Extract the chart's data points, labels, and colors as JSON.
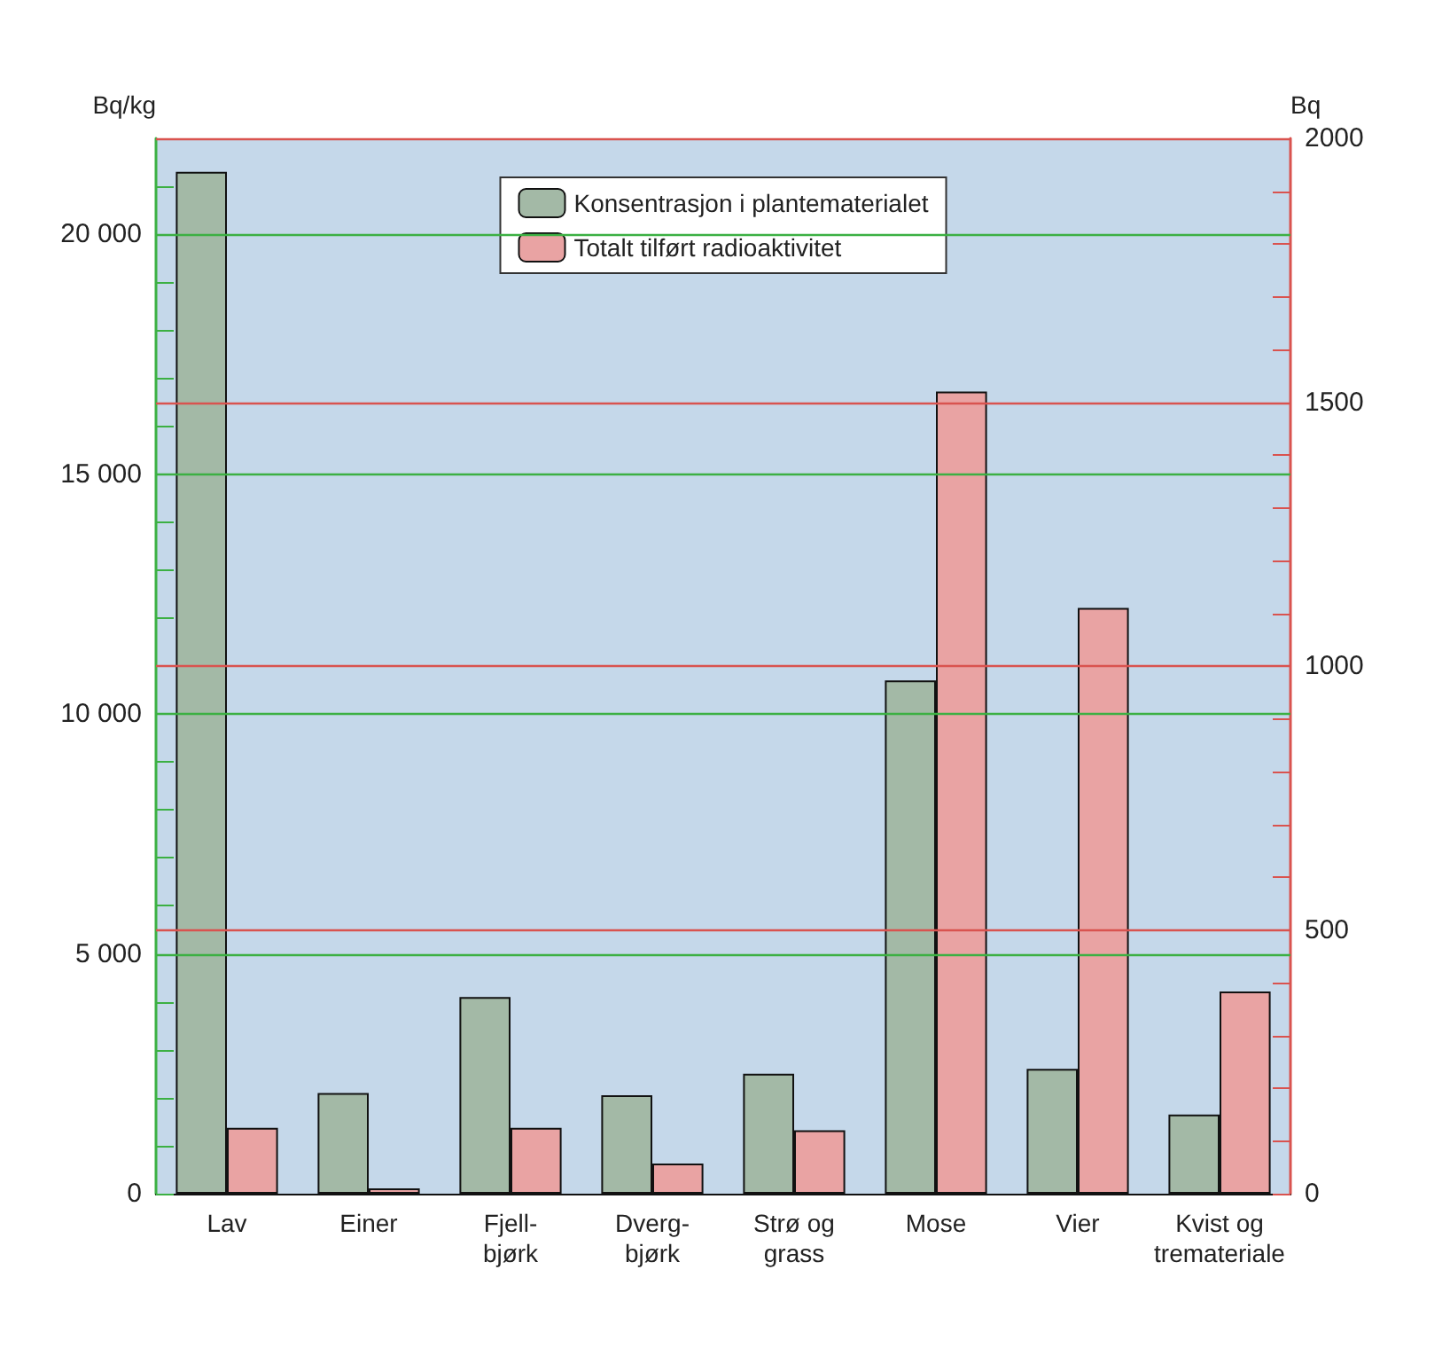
{
  "chart_data": {
    "type": "bar",
    "ylabel": "Bq/kg",
    "y2label": "Bq",
    "categories": [
      "Lav",
      "Einer",
      "Fjell-\nbjørk",
      "Dverg-\nbjørk",
      "Strø og\ngrass",
      "Mose",
      "Vier",
      "Kvist og\ntremateriale"
    ],
    "series": [
      {
        "name": "Konsentrasjon i plantematerialet",
        "color": "#a3b9a6",
        "values": [
          21300,
          2100,
          4100,
          2050,
          2500,
          10700,
          2600,
          1650
        ]
      },
      {
        "name": "Totalt tilført radioaktivitet",
        "color": "#e9a3a3",
        "axis": "y2",
        "values": [
          125,
          10,
          125,
          57,
          120,
          1520,
          1110,
          383
        ]
      }
    ],
    "ylim": [
      0,
      22000
    ],
    "yticks": [
      {
        "value": 0,
        "label": "0"
      },
      {
        "value": 1000,
        "label": null
      },
      {
        "value": 2000,
        "label": null
      },
      {
        "value": 3000,
        "label": null
      },
      {
        "value": 4000,
        "label": null
      },
      {
        "value": 5000,
        "label": "5 000"
      },
      {
        "value": 6000,
        "label": null
      },
      {
        "value": 7000,
        "label": null
      },
      {
        "value": 8000,
        "label": null
      },
      {
        "value": 9000,
        "label": null
      },
      {
        "value": 10000,
        "label": "10 000"
      },
      {
        "value": 11000,
        "label": null
      },
      {
        "value": 12000,
        "label": null
      },
      {
        "value": 13000,
        "label": null
      },
      {
        "value": 14000,
        "label": null
      },
      {
        "value": 15000,
        "label": "15 000"
      },
      {
        "value": 16000,
        "label": null
      },
      {
        "value": 17000,
        "label": null
      },
      {
        "value": 18000,
        "label": null
      },
      {
        "value": 19000,
        "label": null
      },
      {
        "value": 20000,
        "label": "20 000"
      },
      {
        "value": 21000,
        "label": null
      }
    ],
    "y2lim": [
      0,
      2000
    ],
    "y2ticks": [
      0,
      {
        "value": 100,
        "label": null
      },
      {
        "value": 200,
        "label": null
      },
      {
        "value": 300,
        "label": null
      },
      {
        "value": 400,
        "label": null
      },
      500,
      {
        "value": 600,
        "label": null
      },
      {
        "value": 700,
        "label": null
      },
      {
        "value": 800,
        "label": null
      },
      {
        "value": 900,
        "label": null
      },
      1000,
      {
        "value": 1100,
        "label": null
      },
      {
        "value": 1200,
        "label": null
      },
      {
        "value": 1300,
        "label": null
      },
      {
        "value": 1400,
        "label": null
      },
      1500,
      {
        "value": 1600,
        "label": null
      },
      {
        "value": 1700,
        "label": null
      },
      {
        "value": 1800,
        "label": null
      },
      {
        "value": 1900,
        "label": null
      },
      2000
    ],
    "grid": "y",
    "legend": "top"
  }
}
